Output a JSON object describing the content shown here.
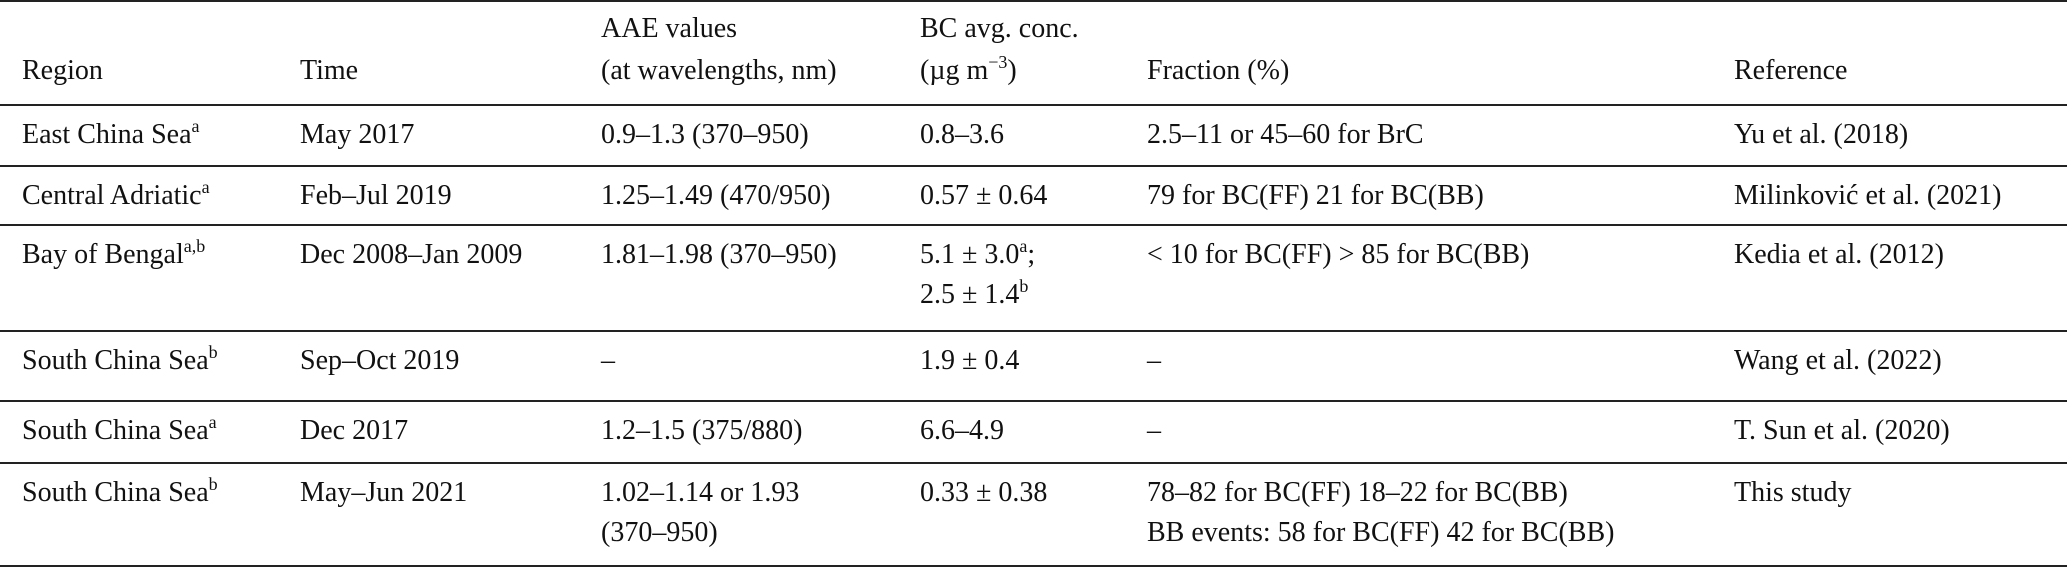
{
  "table": {
    "header": [
      [
        [
          "Region"
        ]
      ],
      [
        [
          "Time"
        ]
      ],
      [
        [
          "AAE values"
        ],
        [
          "(at wavelengths, nm)"
        ]
      ],
      [
        [
          "BC avg. conc."
        ],
        [
          "(µg m",
          {
            "sup": "−3"
          },
          ")"
        ]
      ],
      [
        [
          "Fraction (%)"
        ]
      ],
      [
        [
          "Reference"
        ]
      ]
    ],
    "rows": [
      [
        [
          [
            "East China Sea",
            {
              "sup": "a"
            }
          ]
        ],
        [
          [
            "May 2017"
          ]
        ],
        [
          [
            "0.9–1.3 (370–950)"
          ]
        ],
        [
          [
            "0.8–3.6"
          ]
        ],
        [
          [
            "2.5–11 or 45–60 for BrC"
          ]
        ],
        [
          [
            "Yu et al. (2018)"
          ]
        ]
      ],
      [
        [
          [
            "Central Adriatic",
            {
              "sup": "a"
            }
          ]
        ],
        [
          [
            "Feb–Jul 2019"
          ]
        ],
        [
          [
            "1.25–1.49 (470/950)"
          ]
        ],
        [
          [
            "0.57 ± 0.64"
          ]
        ],
        [
          [
            "79 for BC(FF) 21 for BC(BB)"
          ]
        ],
        [
          [
            "Milinković et al. (2021)"
          ]
        ]
      ],
      [
        [
          [
            "Bay of Bengal",
            {
              "sup": "a,b"
            }
          ]
        ],
        [
          [
            "Dec 2008–Jan 2009"
          ]
        ],
        [
          [
            "1.81–1.98 (370–950)"
          ]
        ],
        [
          [
            "5.1 ± 3.0",
            {
              "sup": "a"
            },
            ";"
          ],
          [
            "2.5 ± 1.4",
            {
              "sup": "b"
            }
          ]
        ],
        [
          [
            "< 10 for BC(FF) > 85 for BC(BB)"
          ]
        ],
        [
          [
            "Kedia et al. (2012)"
          ]
        ]
      ],
      [
        [
          [
            "South China Sea",
            {
              "sup": "b"
            }
          ]
        ],
        [
          [
            "Sep–Oct 2019"
          ]
        ],
        [
          [
            "–"
          ]
        ],
        [
          [
            "1.9 ± 0.4"
          ]
        ],
        [
          [
            "–"
          ]
        ],
        [
          [
            "Wang et al. (2022)"
          ]
        ]
      ],
      [
        [
          [
            "South China Sea",
            {
              "sup": "a"
            }
          ]
        ],
        [
          [
            "Dec 2017"
          ]
        ],
        [
          [
            "1.2–1.5 (375/880)"
          ]
        ],
        [
          [
            "6.6–4.9"
          ]
        ],
        [
          [
            "–"
          ]
        ],
        [
          [
            "T. Sun et al. (2020)"
          ]
        ]
      ],
      [
        [
          [
            "South China Sea",
            {
              "sup": "b"
            }
          ]
        ],
        [
          [
            "May–Jun 2021"
          ]
        ],
        [
          [
            "1.02–1.14 or 1.93"
          ],
          [
            "(370–950)"
          ]
        ],
        [
          [
            "0.33 ± 0.38"
          ]
        ],
        [
          [
            "78–82 for BC(FF) 18–22 for BC(BB)"
          ],
          [
            "BB events: 58 for BC(FF) 42 for BC(BB)"
          ]
        ],
        [
          [
            "This study"
          ]
        ]
      ]
    ]
  }
}
